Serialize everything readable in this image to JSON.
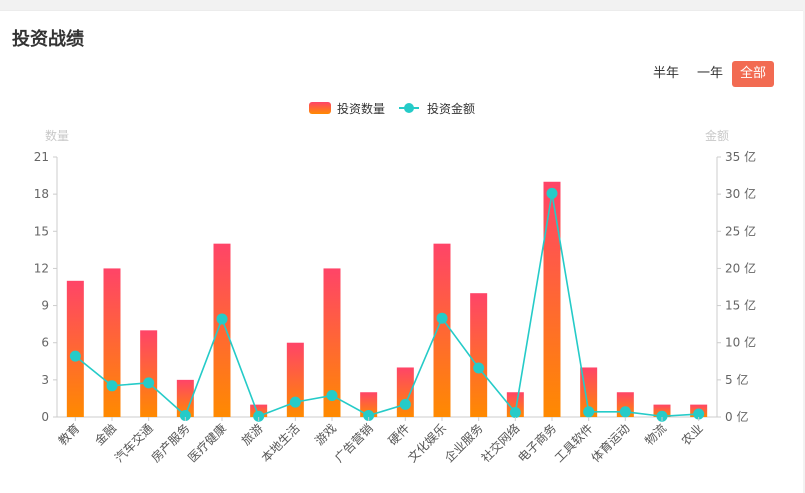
{
  "page": {
    "title": "投资战绩"
  },
  "range_options": [
    {
      "label": "半年",
      "active": false
    },
    {
      "label": "一年",
      "active": false
    },
    {
      "label": "全部",
      "active": true
    }
  ],
  "colors": {
    "bar_top": "#ff4468",
    "bar_bottom": "#ff8a00",
    "line": "#25cbc8",
    "active_button": "#f26b52"
  },
  "chart_data": {
    "type": "bar",
    "legend": [
      "投资数量",
      "投资金额"
    ],
    "legend_position": "top-center",
    "y_left": {
      "name": "数量",
      "min": 0,
      "max": 21,
      "ticks": [
        "0",
        "3",
        "6",
        "9",
        "12",
        "15",
        "18",
        "21"
      ]
    },
    "y_right": {
      "name": "金额",
      "min": 0,
      "max": 35,
      "ticks": [
        "0 亿",
        "5 亿",
        "10 亿",
        "15 亿",
        "20 亿",
        "25 亿",
        "30 亿",
        "35 亿"
      ]
    },
    "categories": [
      "教育",
      "金融",
      "汽车交通",
      "房产服务",
      "医疗健康",
      "旅游",
      "本地生活",
      "游戏",
      "广告营销",
      "硬件",
      "文化娱乐",
      "企业服务",
      "社交网络",
      "电子商务",
      "工具软件",
      "体育运动",
      "物流",
      "农业"
    ],
    "series": [
      {
        "name": "投资数量",
        "type": "bar",
        "axis": "left",
        "values": [
          11,
          12,
          7,
          3,
          14,
          1,
          6,
          12,
          2,
          4,
          14,
          10,
          2,
          19,
          4,
          2,
          1,
          1
        ]
      },
      {
        "name": "投资金额",
        "type": "line",
        "axis": "right",
        "values": [
          8.2,
          4.2,
          4.6,
          0.2,
          13.2,
          0.1,
          2.0,
          2.9,
          0.2,
          1.7,
          13.3,
          6.6,
          0.6,
          30.1,
          0.7,
          0.7,
          0.1,
          0.4
        ]
      }
    ],
    "grid": false
  }
}
